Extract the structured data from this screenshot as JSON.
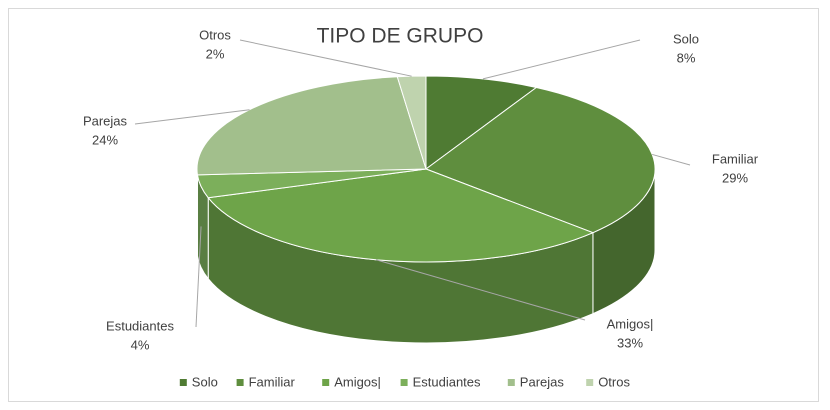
{
  "chart_data": {
    "type": "pie",
    "title": "TIPO DE GRUPO",
    "categories": [
      "Solo",
      "Familiar",
      "Amigos|",
      "Estudiantes",
      "Parejas",
      "Otros"
    ],
    "values": [
      8,
      29,
      33,
      4,
      24,
      2
    ],
    "value_labels": [
      "8%",
      "29%",
      "33%",
      "4%",
      "24%",
      "2%"
    ],
    "colors": [
      "#4f7b33",
      "#5f8e3e",
      "#6ea449",
      "#7caf5b",
      "#a2bf8c",
      "#bfd3ae"
    ],
    "legend": "bottom"
  }
}
